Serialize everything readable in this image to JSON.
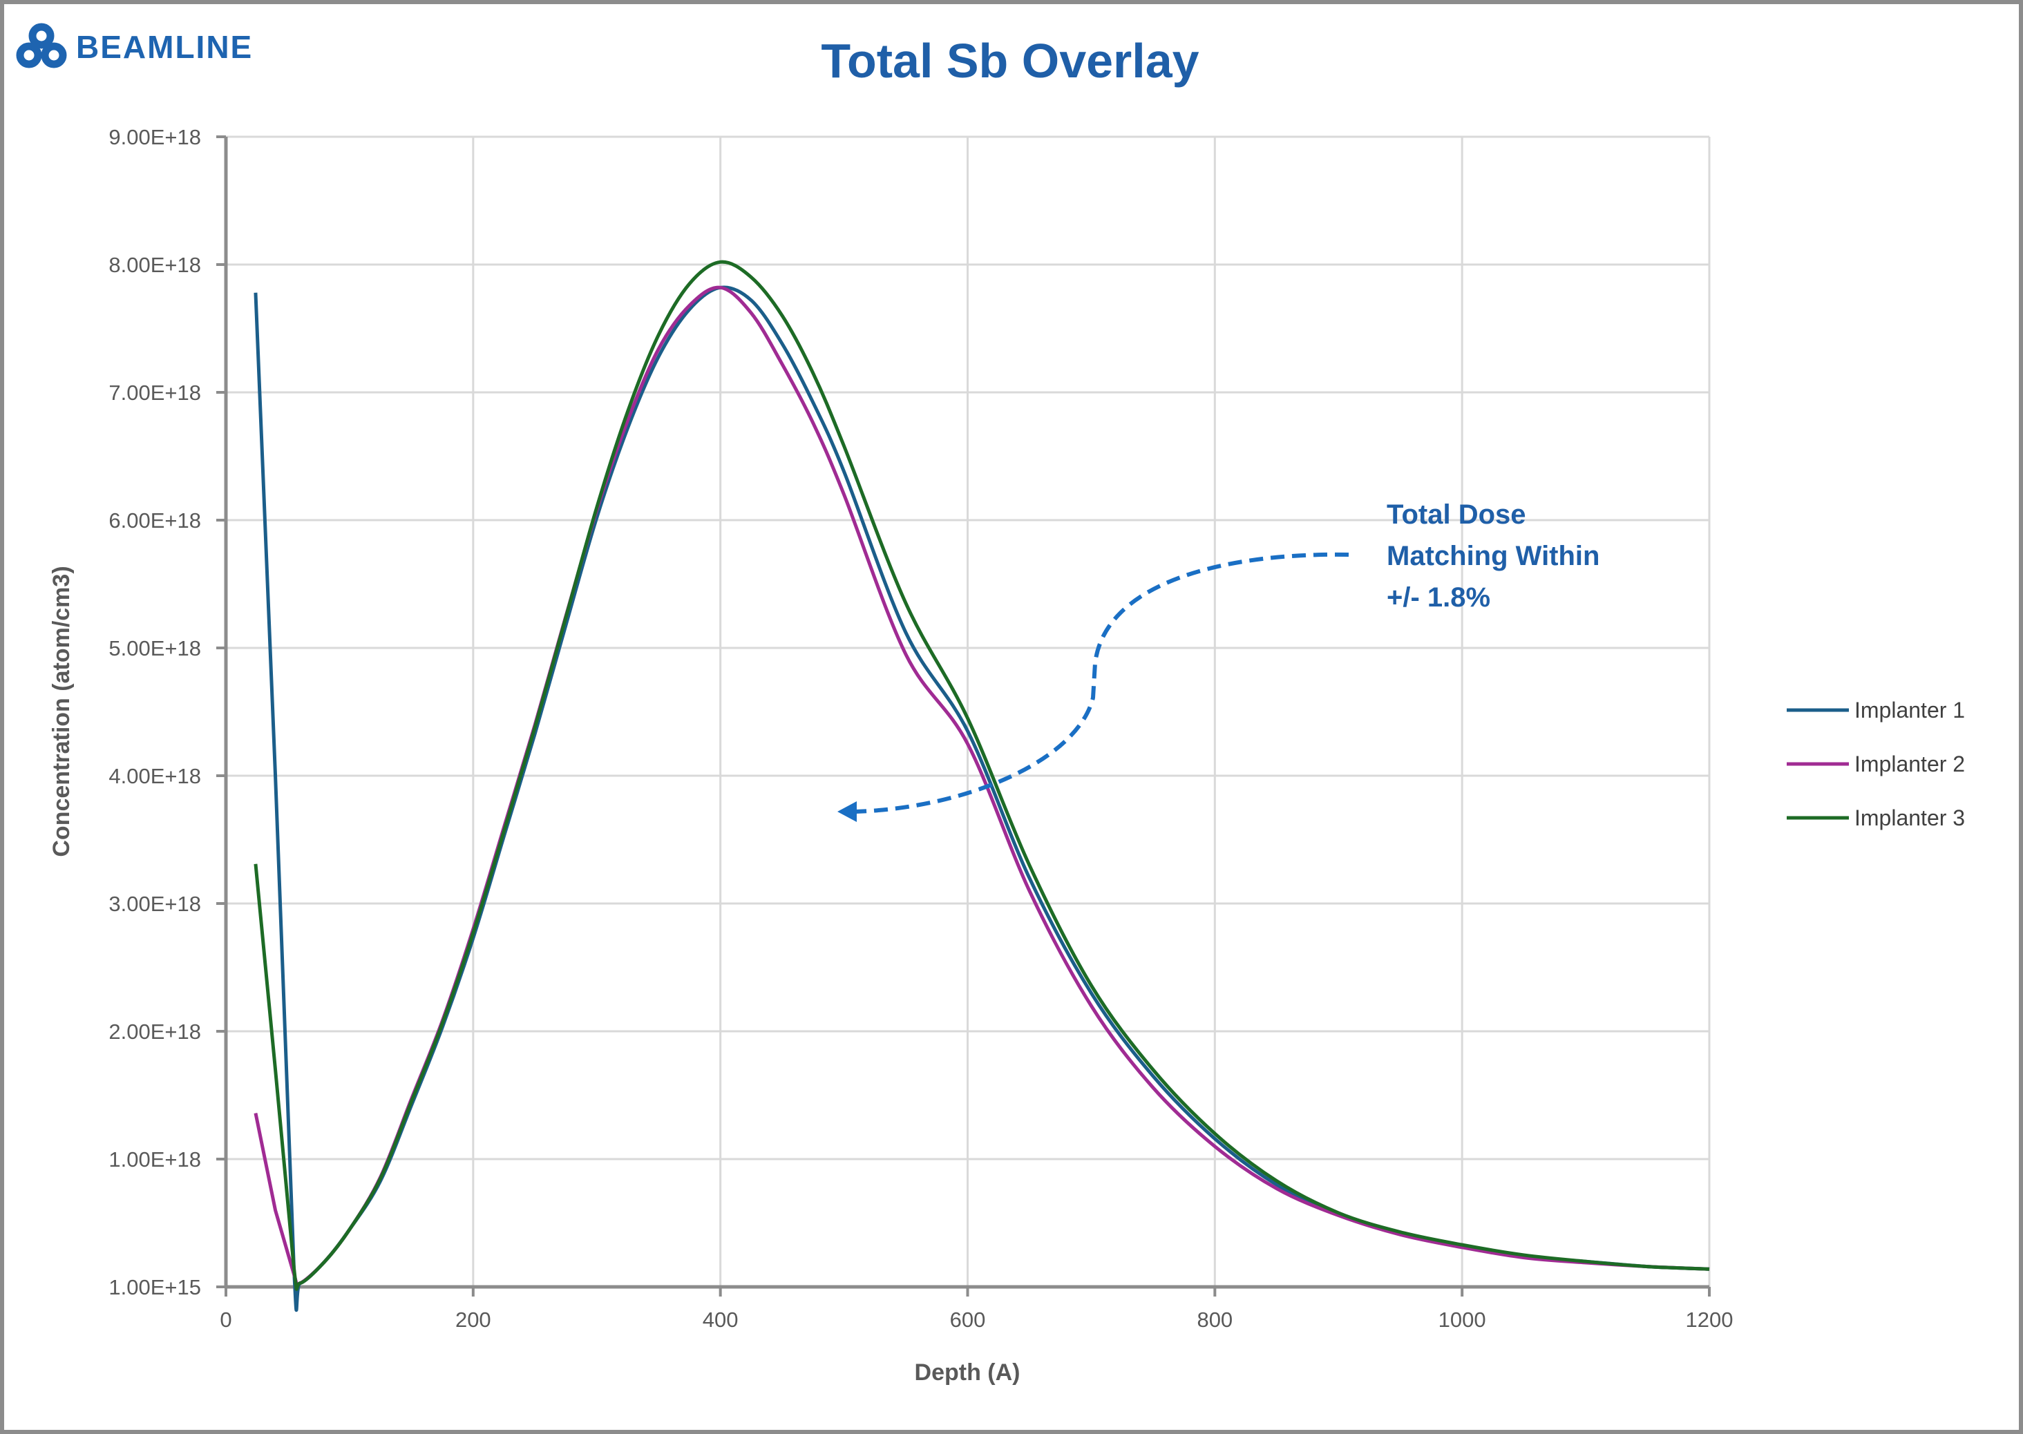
{
  "logo": {
    "text": "BEAMLINE"
  },
  "chart_data": {
    "type": "line",
    "title": "Total Sb Overlay",
    "xlabel": "Depth (A)",
    "ylabel": "Concentration (atom/cm3)",
    "xlim": [
      0,
      1200
    ],
    "ylim": [
      1000000000000000.0,
      9e+18
    ],
    "xticks": [
      "0",
      "200",
      "400",
      "600",
      "800",
      "1000",
      "1200"
    ],
    "yticks": [
      "1.00E+15",
      "1.00E+18",
      "2.00E+18",
      "3.00E+18",
      "4.00E+18",
      "5.00E+18",
      "6.00E+18",
      "7.00E+18",
      "8.00E+18",
      "9.00E+18"
    ],
    "grid": true,
    "legend_position": "right",
    "x": [
      24,
      40,
      55,
      60,
      80,
      100,
      125,
      150,
      175,
      200,
      225,
      250,
      275,
      300,
      325,
      350,
      375,
      400,
      425,
      450,
      475,
      500,
      550,
      600,
      650,
      700,
      750,
      800,
      850,
      900,
      950,
      1000,
      1050,
      1100,
      1150,
      1200
    ],
    "series": [
      {
        "name": "Implanter 1",
        "color": "#1b5e8a",
        "values": [
          7.78e+18,
          4e+18,
          1.5e+17,
          3e+16,
          2e+17,
          4.5e+17,
          8.3e+17,
          1.42e+18,
          2.03e+18,
          2.73e+18,
          3.53e+18,
          4.33e+18,
          5.18e+18,
          6.02e+18,
          6.72e+18,
          7.28e+18,
          7.65e+18,
          7.82e+18,
          7.72e+18,
          7.38e+18,
          6.92e+18,
          6.38e+18,
          5.12e+18,
          4.35e+18,
          3.2e+18,
          2.3e+18,
          1.65e+18,
          1.16e+18,
          8e+17,
          5.7e+17,
          4.2e+17,
          3.2e+17,
          2.4e+17,
          2e+17,
          1.6e+17,
          1.4e+17
        ]
      },
      {
        "name": "Implanter 2",
        "color": "#a02b93",
        "values": [
          1.36e+18,
          6e+17,
          1e+17,
          3e+16,
          2e+17,
          4.5e+17,
          8.6e+17,
          1.47e+18,
          2.08e+18,
          2.8e+18,
          3.6e+18,
          4.4e+18,
          5.25e+18,
          6.08e+18,
          6.78e+18,
          7.34e+18,
          7.68e+18,
          7.82e+18,
          7.62e+18,
          7.22e+18,
          6.76e+18,
          6.2e+18,
          4.95e+18,
          4.25e+18,
          3.1e+18,
          2.2e+18,
          1.56e+18,
          1.1e+18,
          7.7e+17,
          5.6e+17,
          4.1e+17,
          3.1e+17,
          2.3e+17,
          1.9e+17,
          1.6e+17,
          1.4e+17
        ]
      },
      {
        "name": "Implanter 3",
        "color": "#1d6b25",
        "values": [
          3.31e+18,
          1.7e+18,
          1.5e+17,
          3e+16,
          2e+17,
          4.5e+17,
          8.5e+17,
          1.45e+18,
          2.06e+18,
          2.77e+18,
          3.57e+18,
          4.38e+18,
          5.24e+18,
          6.1e+18,
          6.85e+18,
          7.45e+18,
          7.85e+18,
          8.02e+18,
          7.9e+18,
          7.6e+18,
          7.15e+18,
          6.58e+18,
          5.35e+18,
          4.45e+18,
          3.3e+18,
          2.36e+18,
          1.7e+18,
          1.2e+18,
          8.3e+17,
          5.8e+17,
          4.3e+17,
          3.3e+17,
          2.5e+17,
          2e+17,
          1.6e+17,
          1.4e+17
        ]
      }
    ],
    "annotation": {
      "lines": [
        "Total Dose",
        "Matching Within",
        "+/- 1.8%"
      ],
      "color": "#1a6fc4"
    }
  }
}
